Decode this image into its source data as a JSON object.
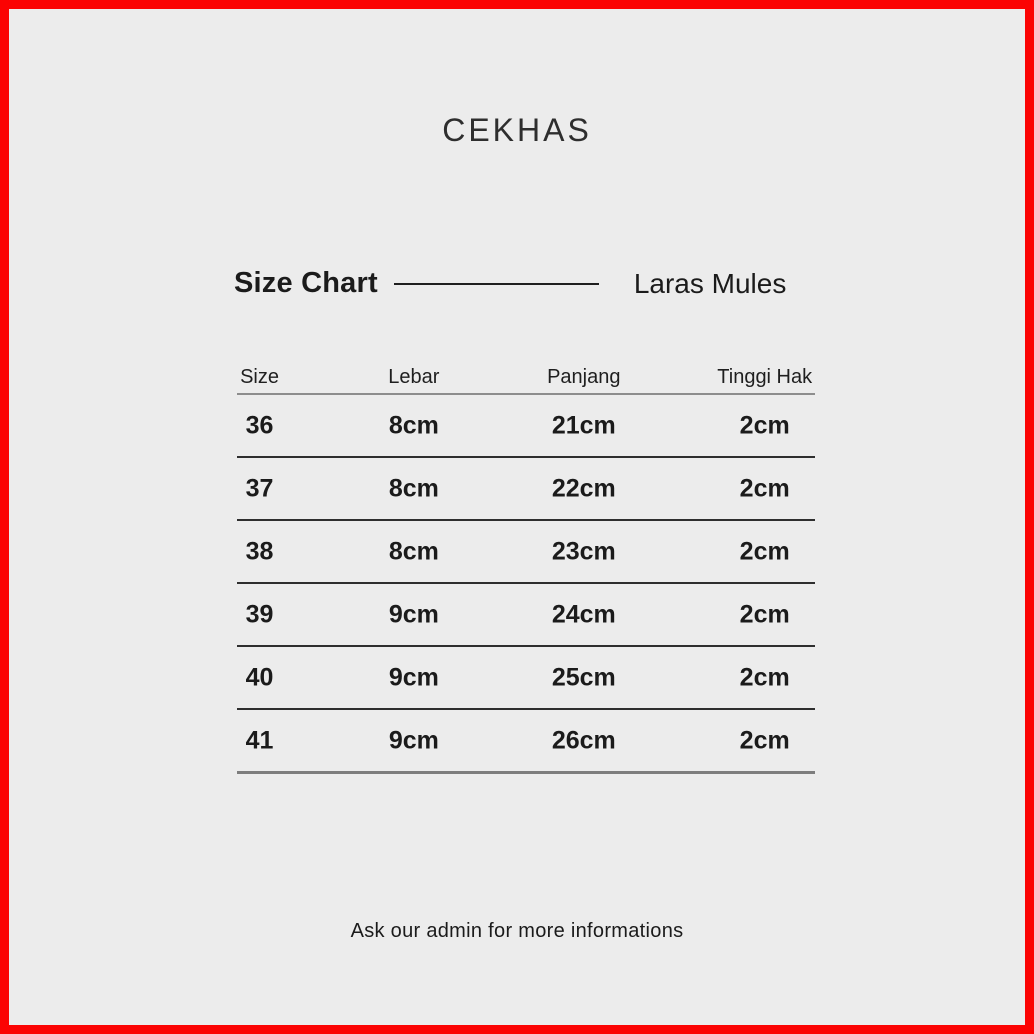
{
  "colors": {
    "border": "#fb0303",
    "bg": "#ececec",
    "ink": "#1b1b1b",
    "brandink": "#2e2e2e",
    "headerline": "#8d8d8d",
    "rowline": "#2e2e2e",
    "bottomline": "#7d7d7d"
  },
  "brand": "CEKHAS",
  "footer": {
    "note": "Ask our admin for more informations"
  },
  "chart_data": {
    "type": "table",
    "title": "Size Chart",
    "product_name": "Laras Mules",
    "columns": [
      "Size",
      "Lebar",
      "Panjang",
      "Tinggi Hak"
    ],
    "rows": [
      [
        "36",
        "8cm",
        "21cm",
        "2cm"
      ],
      [
        "37",
        "8cm",
        "22cm",
        "2cm"
      ],
      [
        "38",
        "8cm",
        "23cm",
        "2cm"
      ],
      [
        "39",
        "9cm",
        "24cm",
        "2cm"
      ],
      [
        "40",
        "9cm",
        "25cm",
        "2cm"
      ],
      [
        "41",
        "9cm",
        "26cm",
        "2cm"
      ]
    ],
    "sizes": [
      36,
      37,
      38,
      39,
      40,
      41
    ],
    "lebar_cm": [
      8,
      8,
      8,
      9,
      9,
      9
    ],
    "panjang_cm": [
      21,
      22,
      23,
      24,
      25,
      26
    ],
    "tinggi_hak_cm": [
      2,
      2,
      2,
      2,
      2,
      2
    ],
    "layout_hints": {
      "grid": "horizontal row separators only",
      "header_position": "top"
    }
  }
}
